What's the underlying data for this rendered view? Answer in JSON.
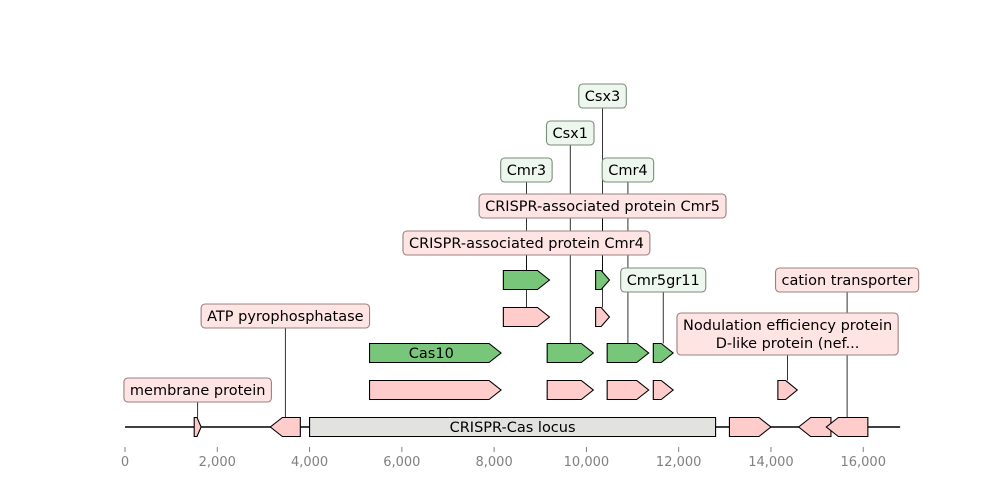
{
  "axis": {
    "range": [
      0,
      16800
    ],
    "ticks": [
      {
        "value": 0,
        "label": "0"
      },
      {
        "value": 2000,
        "label": "2,000"
      },
      {
        "value": 4000,
        "label": "4,000"
      },
      {
        "value": 6000,
        "label": "6,000"
      },
      {
        "value": 8000,
        "label": "8,000"
      },
      {
        "value": 10000,
        "label": "10,000"
      },
      {
        "value": 12000,
        "label": "12,000"
      },
      {
        "value": 14000,
        "label": "14,000"
      },
      {
        "value": 16000,
        "label": "16,000"
      }
    ]
  },
  "colors": {
    "pink_fill": "#ffcccc",
    "green_fill": "#78c679",
    "locus_fill": "#e2e2de",
    "pink_label_bg": "#ffe4e4",
    "green_label_bg": "#eef7ee",
    "pink_label_border": "#9a8080",
    "green_label_border": "#7a8c7a"
  },
  "features": [
    {
      "id": "membrane-protein",
      "start": 1500,
      "end": 1650,
      "strand": 1,
      "color": "pink",
      "row": 0,
      "label": "membrane protein"
    },
    {
      "id": "atp-pyrophosphatase",
      "start": 3150,
      "end": 3800,
      "strand": -1,
      "color": "pink",
      "row": 0,
      "label": "ATP pyrophosphatase"
    },
    {
      "id": "crispr-cas-locus",
      "start": 4000,
      "end": 12800,
      "strand": 0,
      "color": "locus",
      "row": 0,
      "text": "CRISPR-Cas locus"
    },
    {
      "id": "gene-13100",
      "start": 13100,
      "end": 14000,
      "strand": 1,
      "color": "pink",
      "row": 0
    },
    {
      "id": "gene-14600",
      "start": 14600,
      "end": 15300,
      "strand": -1,
      "color": "pink",
      "row": 0
    },
    {
      "id": "cation-transporter",
      "start": 15200,
      "end": 16100,
      "strand": -1,
      "color": "pink",
      "row": 0,
      "label": "cation transporter"
    },
    {
      "id": "cas10-pink",
      "start": 5300,
      "end": 8150,
      "strand": 1,
      "color": "pink",
      "row": 1
    },
    {
      "id": "csx1-pink",
      "start": 9150,
      "end": 10150,
      "strand": 1,
      "color": "pink",
      "row": 1
    },
    {
      "id": "cmr4-pink",
      "start": 10450,
      "end": 11350,
      "strand": 1,
      "color": "pink",
      "row": 1
    },
    {
      "id": "cmr5gr11-pink",
      "start": 11450,
      "end": 11880,
      "strand": 1,
      "color": "pink",
      "row": 1
    },
    {
      "id": "nef-pink",
      "start": 14150,
      "end": 14570,
      "strand": 1,
      "color": "pink",
      "row": 1,
      "label": "Nodulation efficiency protein D-like protein (nef..."
    },
    {
      "id": "cas10",
      "start": 5300,
      "end": 8150,
      "strand": 1,
      "color": "green",
      "row": 2,
      "text": "Cas10"
    },
    {
      "id": "csx1",
      "start": 9150,
      "end": 10150,
      "strand": 1,
      "color": "green",
      "row": 2,
      "label": "Csx1"
    },
    {
      "id": "cmr4",
      "start": 10450,
      "end": 11350,
      "strand": 1,
      "color": "green",
      "row": 2,
      "label": "Cmr4"
    },
    {
      "id": "cmr5gr11",
      "start": 11450,
      "end": 11880,
      "strand": 1,
      "color": "green",
      "row": 2,
      "label": "Cmr5gr11"
    },
    {
      "id": "cas-cmr4-pink",
      "start": 8200,
      "end": 9200,
      "strand": 1,
      "color": "pink",
      "row": 3,
      "label": "CRISPR-associated protein Cmr4"
    },
    {
      "id": "cas-cmr5-pink",
      "start": 10200,
      "end": 10500,
      "strand": 1,
      "color": "pink",
      "row": 3,
      "label": "CRISPR-associated protein Cmr5"
    },
    {
      "id": "cmr3",
      "start": 8200,
      "end": 9200,
      "strand": 1,
      "color": "green",
      "row": 4,
      "label": "Cmr3"
    },
    {
      "id": "csx3",
      "start": 10200,
      "end": 10500,
      "strand": 1,
      "color": "green",
      "row": 4,
      "label": "Csx3"
    }
  ]
}
